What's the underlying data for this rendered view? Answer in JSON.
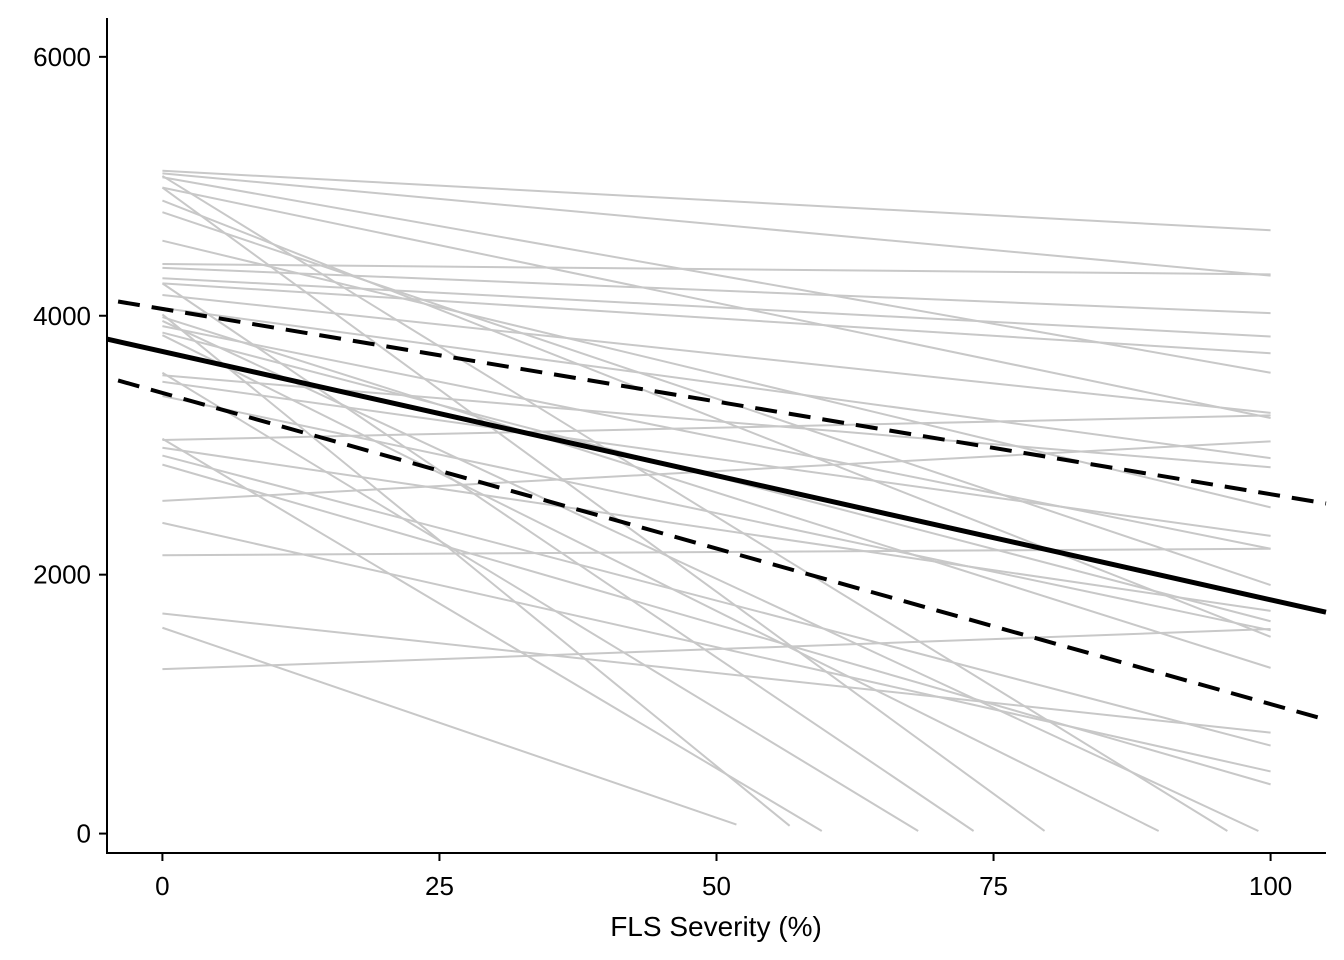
{
  "chart_data": {
    "type": "line",
    "title": "",
    "xlabel": "FLS Severity (%)",
    "ylabel": "",
    "xlim": [
      -5,
      105
    ],
    "ylim": [
      -150,
      6300
    ],
    "xticks": [
      0,
      25,
      50,
      75,
      100
    ],
    "yticks": [
      0,
      2000,
      4000,
      6000
    ],
    "grid": false,
    "legend": "none",
    "colors": {
      "individual": "#c8c8c8",
      "fit": "#000000",
      "ci": "#000000"
    },
    "fit": {
      "x": [
        -5,
        105
      ],
      "y": [
        3820,
        1710
      ]
    },
    "ci_upper": {
      "x": [
        -4,
        105
      ],
      "y": [
        4110,
        2550
      ]
    },
    "ci_lower": {
      "x": [
        -4,
        105
      ],
      "y": [
        3500,
        880
      ]
    },
    "individual_lines": [
      {
        "x": [
          0,
          100
        ],
        "y": [
          5120,
          4660
        ]
      },
      {
        "x": [
          0,
          100
        ],
        "y": [
          5100,
          4310
        ]
      },
      {
        "x": [
          0,
          100
        ],
        "y": [
          5070,
          3560
        ]
      },
      {
        "x": [
          0,
          100
        ],
        "y": [
          4990,
          3210
        ]
      },
      {
        "x": [
          0,
          100
        ],
        "y": [
          4890,
          1520
        ]
      },
      {
        "x": [
          0,
          100
        ],
        "y": [
          4800,
          1920
        ]
      },
      {
        "x": [
          0,
          100
        ],
        "y": [
          4580,
          2520
        ]
      },
      {
        "x": [
          0,
          100
        ],
        "y": [
          4400,
          4320
        ]
      },
      {
        "x": [
          0,
          100
        ],
        "y": [
          4370,
          4020
        ]
      },
      {
        "x": [
          0,
          100
        ],
        "y": [
          4290,
          3840
        ]
      },
      {
        "x": [
          0,
          100
        ],
        "y": [
          4250,
          3710
        ]
      },
      {
        "x": [
          0,
          100
        ],
        "y": [
          4160,
          3250
        ]
      },
      {
        "x": [
          0,
          100
        ],
        "y": [
          4060,
          2900
        ]
      },
      {
        "x": [
          0,
          100
        ],
        "y": [
          3920,
          2200
        ]
      },
      {
        "x": [
          0,
          100
        ],
        "y": [
          3870,
          1640
        ]
      },
      {
        "x": [
          0,
          100
        ],
        "y": [
          3990,
          1280
        ]
      },
      {
        "x": [
          0,
          100
        ],
        "y": [
          3540,
          2830
        ]
      },
      {
        "x": [
          0,
          100
        ],
        "y": [
          3490,
          2300
        ]
      },
      {
        "x": [
          0,
          100
        ],
        "y": [
          3380,
          1570
        ]
      },
      {
        "x": [
          0,
          100
        ],
        "y": [
          3040,
          3230
        ]
      },
      {
        "x": [
          0,
          100
        ],
        "y": [
          2980,
          1720
        ]
      },
      {
        "x": [
          0,
          100
        ],
        "y": [
          2920,
          680
        ]
      },
      {
        "x": [
          0,
          100
        ],
        "y": [
          2850,
          380
        ]
      },
      {
        "x": [
          0,
          100
        ],
        "y": [
          2570,
          3030
        ]
      },
      {
        "x": [
          0,
          100
        ],
        "y": [
          2400,
          480
        ]
      },
      {
        "x": [
          0,
          100
        ],
        "y": [
          2150,
          2200
        ]
      },
      {
        "x": [
          0,
          100
        ],
        "y": [
          1700,
          780
        ]
      },
      {
        "x": [
          0,
          100
        ],
        "y": [
          1270,
          1580
        ]
      },
      {
        "x": [
          0,
          51.8
        ],
        "y": [
          1590,
          70
        ]
      },
      {
        "x": [
          0,
          59.5
        ],
        "y": [
          3050,
          20
        ]
      },
      {
        "x": [
          0,
          68.2
        ],
        "y": [
          3560,
          20
        ]
      },
      {
        "x": [
          0,
          73.2
        ],
        "y": [
          4250,
          20
        ]
      },
      {
        "x": [
          0,
          79.6
        ],
        "y": [
          4990,
          20
        ]
      },
      {
        "x": [
          0,
          89.9
        ],
        "y": [
          3850,
          20
        ]
      },
      {
        "x": [
          0,
          96.1
        ],
        "y": [
          5080,
          20
        ]
      },
      {
        "x": [
          0,
          98.9
        ],
        "y": [
          3960,
          20
        ]
      },
      {
        "x": [
          0,
          56.6
        ],
        "y": [
          4010,
          60
        ]
      }
    ]
  }
}
